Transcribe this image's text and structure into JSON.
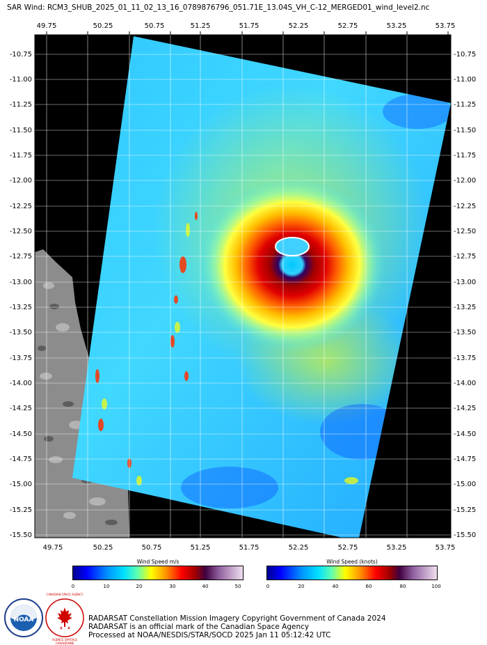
{
  "title": "SAR Wind: RCM3_SHUB_2025_01_11_02_13_16_0789876796_051.71E_13.04S_VH_C-12_MERGED01_wind_level2.nc",
  "axes": {
    "lon_ticks": [
      "49.75",
      "50.25",
      "50.75",
      "51.25",
      "51.75",
      "52.25",
      "52.75",
      "53.25",
      "53.75"
    ],
    "lat_ticks": [
      "-10.75",
      "-11.00",
      "-11.25",
      "-11.50",
      "-11.75",
      "-12.00",
      "-12.25",
      "-12.50",
      "-12.75",
      "-13.00",
      "-13.25",
      "-13.50",
      "-13.75",
      "-14.00",
      "-14.25",
      "-14.50",
      "-14.75",
      "-15.00",
      "-15.25",
      "-15.50"
    ]
  },
  "colorbars": {
    "ms": {
      "title": "Wind Speed m/s",
      "ticks": [
        "0",
        "10",
        "20",
        "30",
        "40",
        "50"
      ]
    },
    "knots": {
      "title": "Wind Speed (knots)",
      "ticks": [
        "0",
        "20",
        "40",
        "60",
        "80",
        "100"
      ]
    }
  },
  "credits": {
    "line1": "RADARSAT Constellation Mission Imagery Copyright Government of Canada 2024",
    "line2": "RADARSAT is an official mark of the Canadian Space Agency",
    "line3": "Processed at NOAA/NESDIS/STAR/SOCD 2025 Jan 11 05:12:42 UTC"
  },
  "logos": {
    "noaa": "NOAA",
    "csa_top": "CANADIAN SPACE AGENCY",
    "csa_bottom": "AGENCE SPATIALE CANADIENNE"
  },
  "colors": {
    "background": "#000000",
    "land": "#8c8c8c",
    "low_wind": "#1e90ff",
    "eye_wall": "#b00000"
  }
}
